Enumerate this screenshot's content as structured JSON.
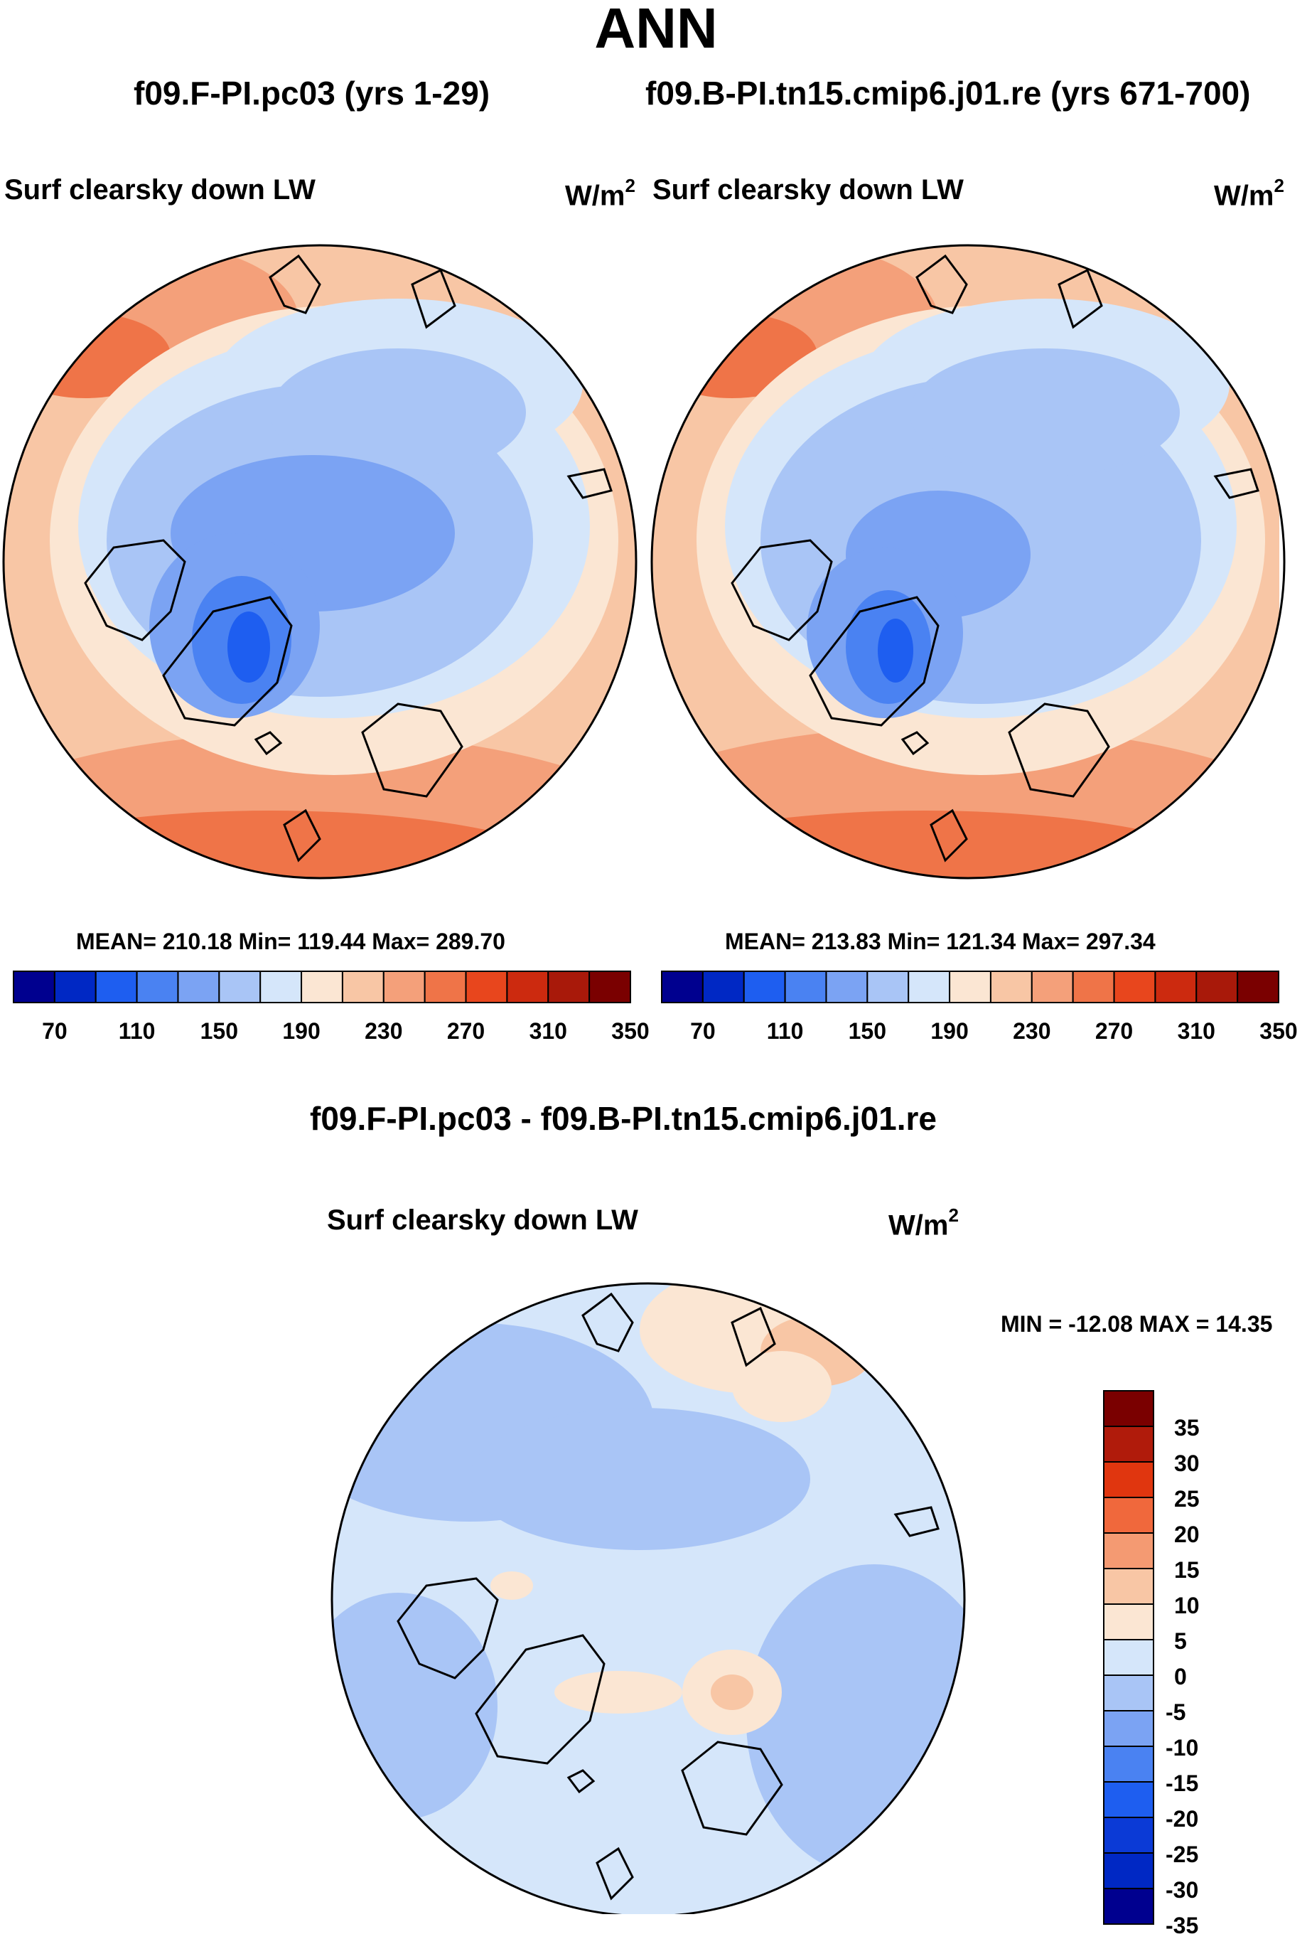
{
  "page": {
    "title": "ANN",
    "diff_title": "f09.F-PI.pc03 - f09.B-PI.tn15.cmip6.j01.re"
  },
  "panels": [
    {
      "case": "f09.F-PI.pc03 (yrs 1-29)",
      "variable": "Surf clearsky down LW",
      "units": "W/m",
      "units_exp": "2",
      "stats": "MEAN= 210.18  Min= 119.44  Max= 289.70"
    },
    {
      "case": "f09.B-PI.tn15.cmip6.j01.re (yrs 671-700)",
      "variable": "Surf clearsky down LW",
      "units": "W/m",
      "units_exp": "2",
      "stats": "MEAN= 213.83  Min= 121.34  Max= 297.34"
    }
  ],
  "diff_panel": {
    "variable": "Surf clearsky down LW",
    "units": "W/m",
    "units_exp": "2",
    "stats": "MIN = -12.08 MAX =  14.35"
  },
  "colorbar_abs": {
    "colors": [
      "#00008f",
      "#0028c4",
      "#1e5ef0",
      "#4a82f2",
      "#7ba3f3",
      "#a9c5f6",
      "#d5e6fa",
      "#fbe6d3",
      "#f8c6a5",
      "#f4a07a",
      "#ef7448",
      "#e8461d",
      "#cc2a0f",
      "#a8190a",
      "#7a0000"
    ],
    "labels": [
      "70",
      "110",
      "150",
      "190",
      "230",
      "270",
      "310",
      "350"
    ]
  },
  "colorbar_diff": {
    "colors": [
      "#7a0000",
      "#b01b0b",
      "#e0360f",
      "#f0683c",
      "#f49a72",
      "#f8c6a5",
      "#fbe6d3",
      "#d5e6fa",
      "#a9c5f6",
      "#7ba3f3",
      "#4a82f2",
      "#1e5ef0",
      "#0b3ad6",
      "#0028c4",
      "#00008f"
    ],
    "labels": [
      "35",
      "30",
      "25",
      "20",
      "15",
      "10",
      "5",
      "0",
      "-5",
      "-10",
      "-15",
      "-20",
      "-25",
      "-30",
      "-35"
    ]
  }
}
